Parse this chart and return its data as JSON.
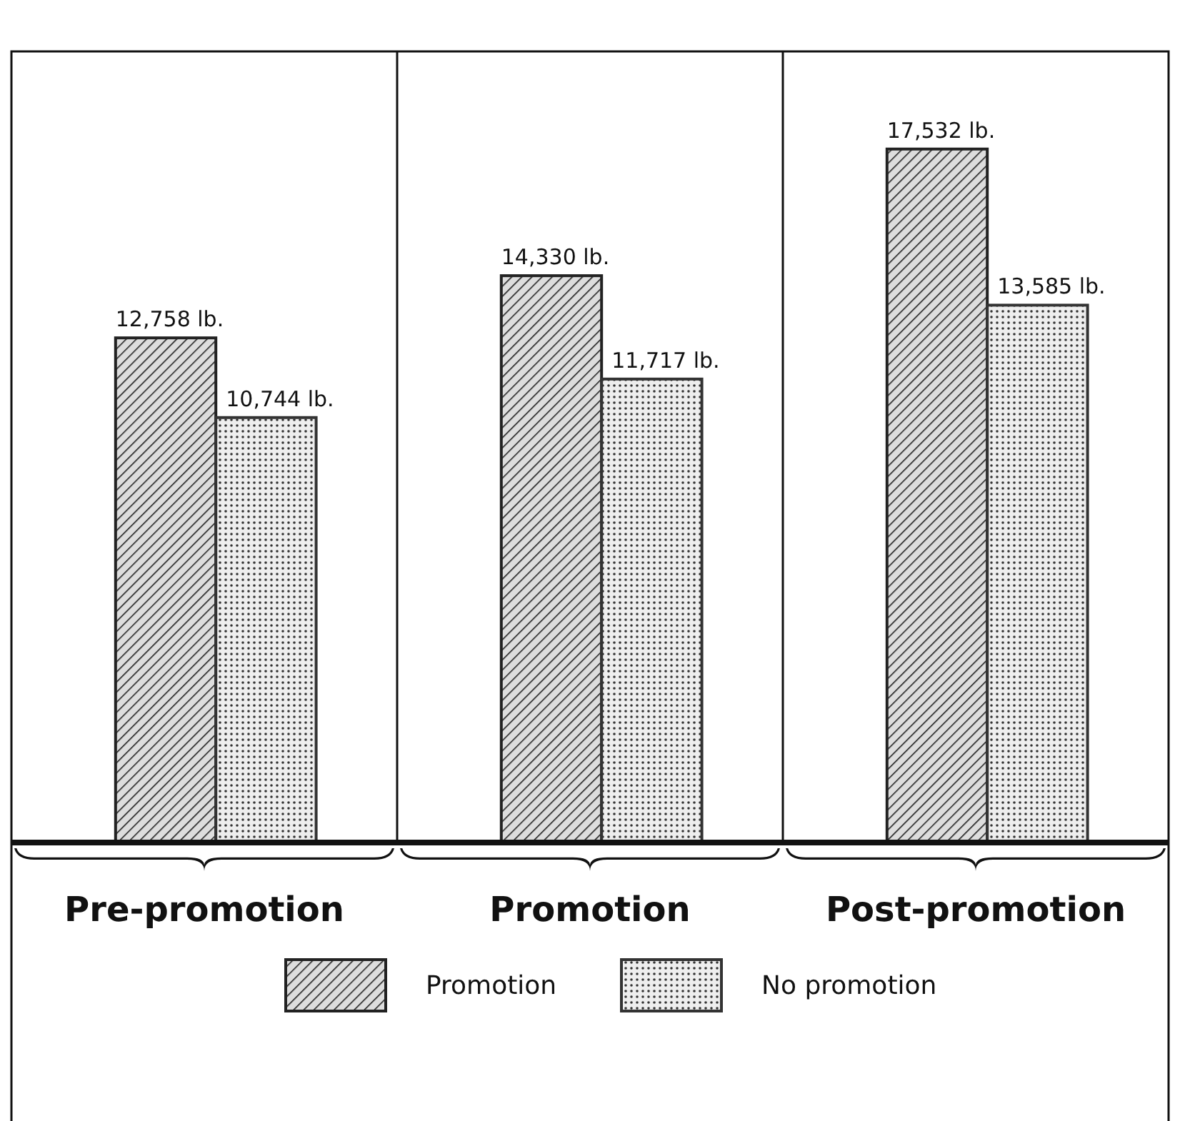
{
  "chart_data": {
    "type": "bar",
    "categories": [
      "Pre-promotion",
      "Promotion",
      "Post-promotion"
    ],
    "series": [
      {
        "name": "Promotion",
        "color": "#222222",
        "values": [
          12758,
          14330,
          17532
        ],
        "value_labels": [
          "12,758 lb.",
          "14,330 lb.",
          "17,532 lb."
        ]
      },
      {
        "name": "No promotion",
        "color": "#333333",
        "values": [
          10744,
          11717,
          13585
        ],
        "value_labels": [
          "10,744 lb.",
          "11,717 lb.",
          "13,585 lb."
        ]
      }
    ],
    "ylim": [
      0,
      20000
    ],
    "tick_labels": "x",
    "legend": "bottom"
  }
}
